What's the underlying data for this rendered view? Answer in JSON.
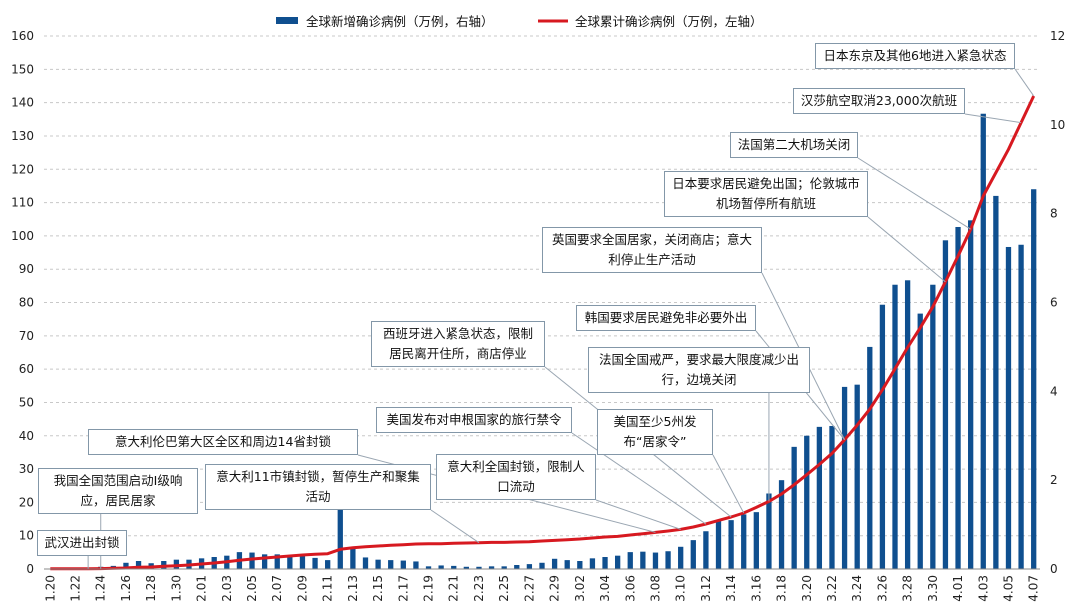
{
  "chart_data": {
    "type": "bar+line",
    "legend": {
      "bar_label": "全球新增确诊病例（万例，右轴）",
      "line_label": "全球累计确诊病例（万例，左轴）",
      "position": "top"
    },
    "colors": {
      "bar": "#0f4f8f",
      "line": "#d71920",
      "annotation_border": "#8397a8",
      "grid": "#c8c8c8"
    },
    "categories": [
      "1.20",
      "1.21",
      "1.22",
      "1.23",
      "1.24",
      "1.25",
      "1.26",
      "1.27",
      "1.28",
      "1.29",
      "1.30",
      "1.31",
      "2.01",
      "2.02",
      "2.03",
      "2.04",
      "2.05",
      "2.06",
      "2.07",
      "2.08",
      "2.09",
      "2.10",
      "2.11",
      "2.12",
      "2.13",
      "2.14",
      "2.15",
      "2.16",
      "2.17",
      "2.18",
      "2.19",
      "2.20",
      "2.21",
      "2.22",
      "2.23",
      "2.24",
      "2.25",
      "2.26",
      "2.27",
      "2.28",
      "2.29",
      "3.01",
      "3.02",
      "3.03",
      "3.04",
      "3.05",
      "3.06",
      "3.07",
      "3.08",
      "3.09",
      "3.10",
      "3.11",
      "3.12",
      "3.13",
      "3.14",
      "3.15",
      "3.16",
      "3.17",
      "3.18",
      "3.19",
      "3.20",
      "3.21",
      "3.22",
      "3.23",
      "3.24",
      "3.25",
      "3.26",
      "3.27",
      "3.28",
      "3.29",
      "3.30",
      "3.31",
      "4.01",
      "4.02",
      "4.03",
      "4.04",
      "4.05",
      "4.06",
      "4.07"
    ],
    "x_tick_labels": [
      "1.20",
      "1.22",
      "1.24",
      "1.26",
      "1.28",
      "1.30",
      "2.01",
      "2.03",
      "2.05",
      "2.07",
      "2.09",
      "2.11",
      "2.13",
      "2.15",
      "2.17",
      "2.19",
      "2.21",
      "2.23",
      "2.25",
      "2.27",
      "2.29",
      "3.02",
      "3.04",
      "3.06",
      "3.08",
      "3.10",
      "3.12",
      "3.14",
      "3.16",
      "3.18",
      "3.20",
      "3.22",
      "3.24",
      "3.26",
      "3.28",
      "3.30",
      "4.01",
      "4.03",
      "4.05",
      "4.07"
    ],
    "left_axis": {
      "min": 0,
      "max": 160,
      "step": 10,
      "ticks": [
        "0",
        "10",
        "20",
        "30",
        "40",
        "50",
        "60",
        "70",
        "80",
        "90",
        "100",
        "110",
        "120",
        "130",
        "140",
        "150",
        "160"
      ]
    },
    "right_axis": {
      "min": 0,
      "max": 12,
      "step": 2,
      "ticks": [
        "0",
        "2",
        "4",
        "6",
        "8",
        "10",
        "12"
      ]
    },
    "series": [
      {
        "name": "全球新增确诊病例（万例，右轴）",
        "kind": "bar",
        "axis": "right",
        "values": [
          0.01,
          0.02,
          0.01,
          0.03,
          0.05,
          0.07,
          0.14,
          0.18,
          0.13,
          0.18,
          0.21,
          0.21,
          0.24,
          0.27,
          0.3,
          0.38,
          0.37,
          0.33,
          0.33,
          0.27,
          0.3,
          0.25,
          0.2,
          1.4,
          0.5,
          0.26,
          0.21,
          0.2,
          0.19,
          0.17,
          0.06,
          0.08,
          0.07,
          0.05,
          0.05,
          0.06,
          0.06,
          0.09,
          0.11,
          0.14,
          0.23,
          0.2,
          0.18,
          0.24,
          0.27,
          0.3,
          0.38,
          0.39,
          0.37,
          0.4,
          0.5,
          0.65,
          0.85,
          1.1,
          1.1,
          1.23,
          1.28,
          1.7,
          2.0,
          2.75,
          3.0,
          3.2,
          3.22,
          4.1,
          4.15,
          5.0,
          5.95,
          6.4,
          6.5,
          5.75,
          6.4,
          7.4,
          7.7,
          7.85,
          10.25,
          8.4,
          7.25,
          7.3,
          8.55
        ]
      },
      {
        "name": "全球累计确诊病例（万例，左轴）",
        "kind": "line",
        "axis": "left",
        "values": [
          0.05,
          0.05,
          0.06,
          0.08,
          0.12,
          0.2,
          0.3,
          0.5,
          0.6,
          0.8,
          1.0,
          1.2,
          1.5,
          1.8,
          2.2,
          2.6,
          3.0,
          3.3,
          3.6,
          3.9,
          4.2,
          4.4,
          4.6,
          5.9,
          6.4,
          6.7,
          6.9,
          7.1,
          7.3,
          7.5,
          7.6,
          7.6,
          7.7,
          7.8,
          7.9,
          8.0,
          8.0,
          8.1,
          8.2,
          8.4,
          8.6,
          8.8,
          9.0,
          9.3,
          9.6,
          9.8,
          10.2,
          10.6,
          11.0,
          11.4,
          11.9,
          12.6,
          13.5,
          14.6,
          15.6,
          16.8,
          18.5,
          20.3,
          22.5,
          25.3,
          28.3,
          31.4,
          34.7,
          38.8,
          43.2,
          48.0,
          53.8,
          60.1,
          66.5,
          72.4,
          78.7,
          86.2,
          94.0,
          102.0,
          112.0,
          119.0,
          126.0,
          134.0,
          142.0
        ]
      }
    ]
  },
  "annotations": [
    {
      "key": "a1",
      "lines": [
        "日本东京及其他6地进入紧急状态"
      ],
      "date": "4.07"
    },
    {
      "key": "a2",
      "lines": [
        "汉莎航空取消23,000次航班"
      ],
      "date": "4.06"
    },
    {
      "key": "a3",
      "lines": [
        "法国第二大机场关闭"
      ],
      "date": "4.02"
    },
    {
      "key": "a4",
      "lines": [
        "日本要求居民避免出国；伦敦城市",
        "机场暂停所有航班"
      ],
      "date": "3.31"
    },
    {
      "key": "a5",
      "lines": [
        "英国要求全国居家，关闭商店；意大",
        "利停止生产活动"
      ],
      "date": "3.23"
    },
    {
      "key": "a6",
      "lines": [
        "韩国要求居民避免非必要外出"
      ],
      "date": "3.23"
    },
    {
      "key": "a7",
      "lines": [
        "西班牙进入紧急状态，限制",
        "居民离开住所，商店停业"
      ],
      "date": "3.14"
    },
    {
      "key": "a8",
      "lines": [
        "法国全国戒严，要求最大限度减少出",
        "行，边境关闭"
      ],
      "date": "3.17"
    },
    {
      "key": "a9",
      "lines": [
        "美国发布对申根国家的旅行禁令"
      ],
      "date": "3.12"
    },
    {
      "key": "a10",
      "lines": [
        "美国至少5州发",
        "布“居家令”"
      ],
      "date": "3.15"
    },
    {
      "key": "a11",
      "lines": [
        "意大利伦巴第大区全区和周边14省封锁"
      ],
      "date": "3.08"
    },
    {
      "key": "a12",
      "lines": [
        "意大利全国封锁，限制人",
        "口流动"
      ],
      "date": "3.10"
    },
    {
      "key": "a13",
      "lines": [
        "意大利11市镇封锁，暂停生产和聚集",
        "活动"
      ],
      "date": "2.23"
    },
    {
      "key": "a14",
      "lines": [
        "我国全国范围启动I级响",
        "应，居民居家"
      ],
      "date": "1.24"
    },
    {
      "key": "a15",
      "lines": [
        "武汉进出封锁"
      ],
      "date": "1.23"
    }
  ]
}
